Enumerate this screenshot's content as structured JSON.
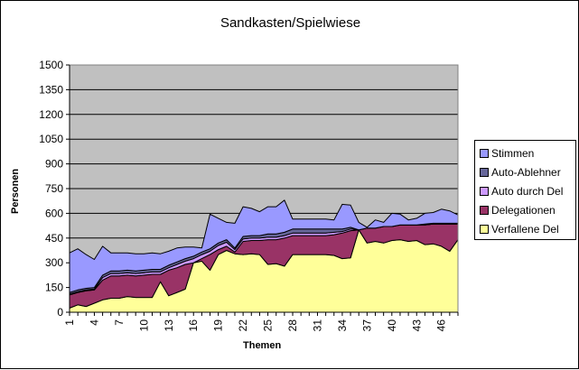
{
  "chart_data": {
    "type": "area",
    "stacked": true,
    "title": "Sandkasten/Spielwiese",
    "xlabel": "Themen",
    "ylabel": "Personen",
    "ylim": [
      0,
      1500
    ],
    "yticks": [
      0,
      150,
      300,
      450,
      600,
      750,
      900,
      1050,
      1200,
      1350,
      1500
    ],
    "xtick_labels": [
      "1",
      "4",
      "7",
      "10",
      "13",
      "16",
      "19",
      "22",
      "25",
      "28",
      "31",
      "34",
      "37",
      "40",
      "43",
      "46"
    ],
    "grid": true,
    "legend_position": "right",
    "x": [
      1,
      2,
      3,
      4,
      5,
      6,
      7,
      8,
      9,
      10,
      11,
      12,
      13,
      14,
      15,
      16,
      17,
      18,
      19,
      20,
      21,
      22,
      23,
      24,
      25,
      26,
      27,
      28,
      29,
      30,
      31,
      32,
      33,
      34,
      35,
      36,
      37,
      38,
      39,
      40,
      41,
      42,
      43,
      44,
      45,
      46,
      47,
      48
    ],
    "series": [
      {
        "name": "Verfallene Del",
        "color": "#FFFF99",
        "values": [
          25,
          45,
          35,
          55,
          75,
          85,
          85,
          95,
          90,
          90,
          90,
          185,
          100,
          120,
          140,
          300,
          310,
          255,
          350,
          375,
          355,
          350,
          355,
          350,
          290,
          295,
          280,
          350,
          350,
          350,
          350,
          350,
          345,
          325,
          330,
          500,
          420,
          430,
          420,
          435,
          440,
          430,
          435,
          410,
          415,
          400,
          370,
          440
        ]
      },
      {
        "name": "Delegationen",
        "color": "#993366",
        "values": [
          80,
          75,
          95,
          80,
          120,
          135,
          135,
          130,
          130,
          135,
          140,
          45,
          155,
          150,
          150,
          0,
          15,
          95,
          30,
          25,
          10,
          80,
          80,
          85,
          150,
          145,
          170,
          115,
          115,
          115,
          115,
          115,
          125,
          155,
          165,
          0,
          90,
          80,
          100,
          85,
          90,
          100,
          95,
          120,
          120,
          135,
          165,
          95
        ]
      },
      {
        "name": "Auto durch Del",
        "color": "#CC99FF",
        "values": [
          5,
          5,
          5,
          5,
          15,
          15,
          15,
          15,
          15,
          15,
          15,
          15,
          15,
          20,
          20,
          25,
          25,
          20,
          25,
          25,
          15,
          15,
          15,
          15,
          15,
          15,
          15,
          15,
          15,
          15,
          15,
          15,
          15,
          10,
          10,
          0,
          0,
          0,
          0,
          0,
          0,
          0,
          0,
          0,
          0,
          0,
          0,
          0
        ]
      },
      {
        "name": "Auto-Ablehner",
        "color": "#666699",
        "values": [
          10,
          10,
          10,
          10,
          15,
          15,
          15,
          15,
          15,
          15,
          15,
          15,
          15,
          15,
          15,
          15,
          15,
          15,
          15,
          15,
          10,
          15,
          15,
          15,
          20,
          20,
          20,
          25,
          25,
          25,
          25,
          25,
          20,
          15,
          10,
          0,
          0,
          0,
          0,
          0,
          0,
          0,
          0,
          5,
          5,
          5,
          5,
          5
        ]
      },
      {
        "name": "Stimmen",
        "color": "#9999FF",
        "values": [
          240,
          250,
          205,
          170,
          175,
          110,
          110,
          105,
          105,
          100,
          100,
          95,
          85,
          85,
          70,
          55,
          25,
          210,
          150,
          105,
          150,
          180,
          165,
          145,
          165,
          165,
          195,
          60,
          60,
          60,
          60,
          60,
          55,
          150,
          135,
          45,
          5,
          50,
          25,
          80,
          65,
          30,
          40,
          65,
          65,
          85,
          75,
          50
        ]
      }
    ]
  },
  "legend": {
    "items": [
      {
        "label": "Stimmen",
        "color": "#9999FF"
      },
      {
        "label": "Auto-Ablehner",
        "color": "#666699"
      },
      {
        "label": "Auto durch Del",
        "color": "#CC99FF"
      },
      {
        "label": "Delegationen",
        "color": "#993366"
      },
      {
        "label": "Verfallene Del",
        "color": "#FFFF99"
      }
    ]
  },
  "colors": {
    "plot_background": "#C0C0C0",
    "chart_background": "#FFFFFF"
  }
}
